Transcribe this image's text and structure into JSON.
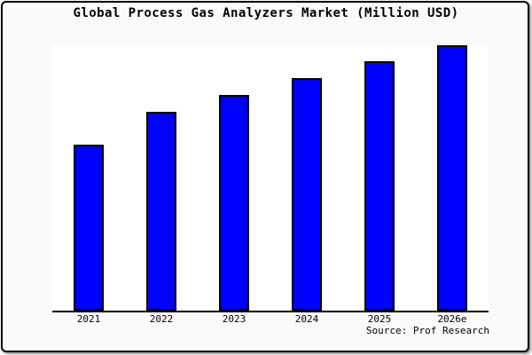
{
  "chart_data": {
    "type": "bar",
    "title": "Global Process Gas Analyzers Market (Million USD)",
    "categories": [
      "2021",
      "2022",
      "2023",
      "2024",
      "2025",
      "2026e"
    ],
    "values": [
      500,
      600,
      650,
      700,
      750,
      800
    ],
    "xlabel": "",
    "ylabel": "",
    "ylim": [
      0,
      802
    ],
    "grid": false,
    "legend": false,
    "y_axis_visible": false,
    "bar_color": "#0000ff",
    "bar_edge_color": "#000000",
    "plot_bg_color": "#ffffff",
    "outer_bg_color": "#fafafa",
    "source_note": "Source: Prof Research"
  }
}
